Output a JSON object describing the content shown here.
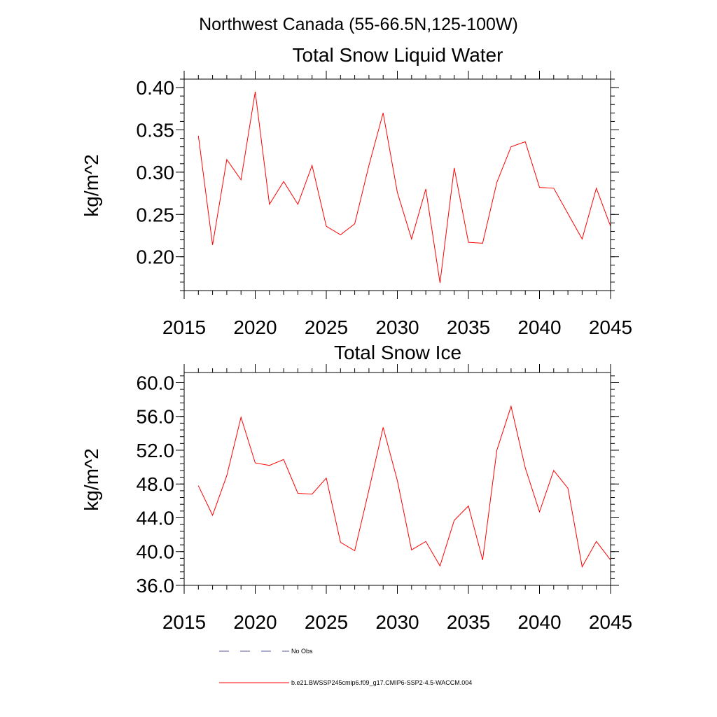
{
  "page_title": "Northwest Canada (55-66.5N,125-100W)",
  "colors": {
    "model_line": "#ff0000",
    "obs_line": "#5a5a9a",
    "axes": "#000000"
  },
  "legend": {
    "entries": [
      {
        "label": "No Obs",
        "style": "dashed",
        "color": "#5a5a9a"
      },
      {
        "label": "b.e21.BWSSP245cmip6.f09_g17.CMIP6-SSP2-4.5-WACCM.004",
        "style": "solid",
        "color": "#ff0000"
      }
    ],
    "placement": "bottom"
  },
  "chart_data": [
    {
      "type": "line",
      "title": "Total Snow Liquid Water",
      "xlabel": "",
      "ylabel": "kg/m^2",
      "xlim": [
        2015,
        2045
      ],
      "ylim": [
        0.16,
        0.41
      ],
      "xticks": [
        2015,
        2020,
        2025,
        2030,
        2035,
        2040,
        2045
      ],
      "xtick_labels": [
        "2015",
        "2020",
        "2025",
        "2030",
        "2035",
        "2040",
        "2045"
      ],
      "yticks": [
        0.2,
        0.25,
        0.3,
        0.35,
        0.4
      ],
      "ytick_labels": [
        "0.20",
        "0.25",
        "0.30",
        "0.35",
        "0.40"
      ],
      "grid": false,
      "series": [
        {
          "name": "b.e21.BWSSP245cmip6.f09_g17.CMIP6-SSP2-4.5-WACCM.004",
          "color": "#ff0000",
          "x": [
            2016,
            2017,
            2018,
            2019,
            2020,
            2021,
            2022,
            2023,
            2024,
            2025,
            2026,
            2027,
            2028,
            2029,
            2030,
            2031,
            2032,
            2033,
            2034,
            2035,
            2036,
            2037,
            2038,
            2039,
            2040,
            2041,
            2042,
            2043,
            2044,
            2045
          ],
          "values": [
            0.343,
            0.214,
            0.315,
            0.291,
            0.395,
            0.262,
            0.289,
            0.262,
            0.308,
            0.236,
            0.226,
            0.239,
            0.308,
            0.37,
            0.276,
            0.221,
            0.28,
            0.169,
            0.305,
            0.217,
            0.216,
            0.288,
            0.33,
            0.336,
            0.282,
            0.281,
            0.251,
            0.221,
            0.281,
            0.236
          ]
        }
      ]
    },
    {
      "type": "line",
      "title": "Total Snow Ice",
      "xlabel": "",
      "ylabel": "kg/m^2",
      "xlim": [
        2015,
        2045
      ],
      "ylim": [
        36.0,
        61.2
      ],
      "xticks": [
        2015,
        2020,
        2025,
        2030,
        2035,
        2040,
        2045
      ],
      "xtick_labels": [
        "2015",
        "2020",
        "2025",
        "2030",
        "2035",
        "2040",
        "2045"
      ],
      "yticks": [
        36.0,
        40.0,
        44.0,
        48.0,
        52.0,
        56.0,
        60.0
      ],
      "ytick_labels": [
        "36.0",
        "40.0",
        "44.0",
        "48.0",
        "52.0",
        "56.0",
        "60.0"
      ],
      "grid": false,
      "series": [
        {
          "name": "b.e21.BWSSP245cmip6.f09_g17.CMIP6-SSP2-4.5-WACCM.004",
          "color": "#ff0000",
          "x": [
            2016,
            2017,
            2018,
            2019,
            2020,
            2021,
            2022,
            2023,
            2024,
            2025,
            2026,
            2027,
            2028,
            2029,
            2030,
            2031,
            2032,
            2033,
            2034,
            2035,
            2036,
            2037,
            2038,
            2039,
            2040,
            2041,
            2042,
            2043,
            2044,
            2045
          ],
          "values": [
            47.8,
            44.3,
            49.0,
            55.9,
            50.5,
            50.2,
            50.9,
            46.9,
            46.8,
            48.7,
            41.1,
            40.1,
            47.3,
            54.7,
            48.4,
            40.2,
            41.2,
            38.3,
            43.7,
            45.4,
            39.0,
            52.0,
            57.2,
            49.9,
            44.7,
            49.6,
            47.5,
            38.2,
            41.2,
            39.0
          ]
        }
      ]
    }
  ]
}
